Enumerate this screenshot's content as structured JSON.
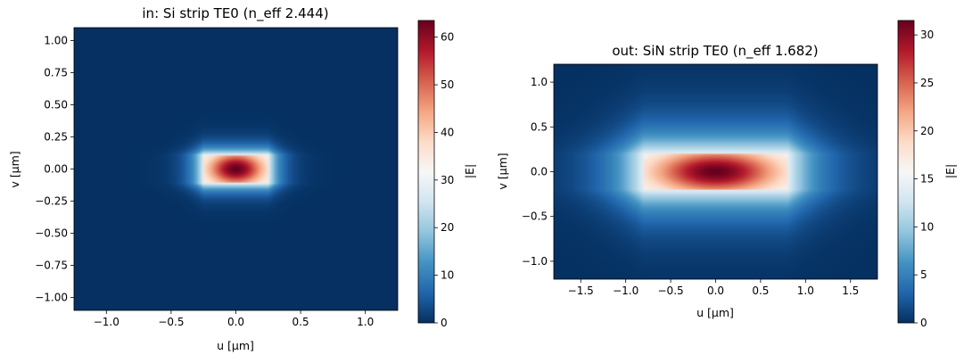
{
  "chart_data": [
    {
      "type": "heatmap",
      "title": "in: Si strip TE0 (n_eff 2.444)",
      "xlabel": "u [µm]",
      "ylabel": "v [µm]",
      "xlim": [
        -1.25,
        1.25
      ],
      "ylim": [
        -1.1,
        1.1
      ],
      "xticks": [
        -1.0,
        -0.5,
        0.0,
        0.5,
        1.0
      ],
      "xtick_labels": [
        "−1.0",
        "−0.5",
        "0.0",
        "0.5",
        "1.0"
      ],
      "yticks": [
        1.0,
        0.75,
        0.5,
        0.25,
        0.0,
        -0.25,
        -0.5,
        -0.75,
        -1.0
      ],
      "ytick_labels": [
        "1.00",
        "0.75",
        "0.50",
        "0.25",
        "0.00",
        "−0.25",
        "−0.50",
        "−0.75",
        "−1.00"
      ],
      "colormap": "RdBu_r",
      "colorbar": {
        "label": "|E|",
        "range": [
          0,
          63.5
        ],
        "ticks": [
          0,
          10,
          20,
          30,
          40,
          50,
          60
        ],
        "tick_labels": [
          "0",
          "10",
          "20",
          "30",
          "40",
          "50",
          "60"
        ]
      },
      "field": {
        "peak": 63.5,
        "center": [
          0.0,
          0.0
        ],
        "core_half_width": 0.25,
        "core_half_height": 0.11,
        "sigma_x": 0.15,
        "sigma_y": 0.09,
        "decay_x": 0.09,
        "decay_y": 0.06
      }
    },
    {
      "type": "heatmap",
      "title": "out: SiN strip TE0 (n_eff 1.682)",
      "xlabel": "u [µm]",
      "ylabel": "v [µm]",
      "xlim": [
        -1.8,
        1.8
      ],
      "ylim": [
        -1.2,
        1.2
      ],
      "xticks": [
        -1.5,
        -1.0,
        -0.5,
        0.0,
        0.5,
        1.0,
        1.5
      ],
      "xtick_labels": [
        "−1.5",
        "−1.0",
        "−0.5",
        "0.0",
        "0.5",
        "1.0",
        "1.5"
      ],
      "yticks": [
        1.0,
        0.5,
        0.0,
        -0.5,
        -1.0
      ],
      "ytick_labels": [
        "1.0",
        "0.5",
        "0.0",
        "−0.5",
        "−1.0"
      ],
      "colormap": "RdBu_r",
      "colorbar": {
        "label": "|E|",
        "range": [
          0,
          31.5
        ],
        "ticks": [
          0,
          5,
          10,
          15,
          20,
          25,
          30
        ],
        "tick_labels": [
          "0",
          "5",
          "10",
          "15",
          "20",
          "25",
          "30"
        ]
      },
      "field": {
        "peak": 31.5,
        "center": [
          0.0,
          0.0
        ],
        "core_half_width": 0.8,
        "core_half_height": 0.2,
        "sigma_x": 0.48,
        "sigma_y": 0.17,
        "decay_x": 0.35,
        "decay_y": 0.25
      }
    }
  ]
}
